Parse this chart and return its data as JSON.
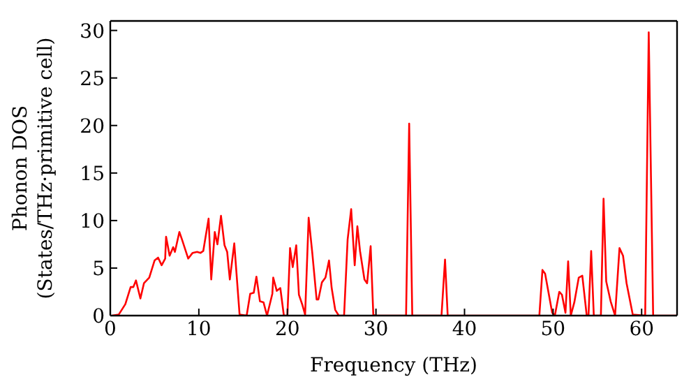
{
  "chart_data": {
    "type": "line",
    "xlabel": "Frequency (THz)",
    "ylabel": "Phonon DOS\n(States/THz·primitive cell)",
    "xlim": [
      0,
      64
    ],
    "ylim": [
      0,
      31
    ],
    "xticks": [
      0,
      10,
      20,
      30,
      40,
      50,
      60
    ],
    "yticks": [
      0,
      5,
      10,
      15,
      20,
      25,
      30
    ],
    "marker": "none",
    "line_style": "solid",
    "x": [
      0.2,
      0.95,
      1.7,
      2.3,
      2.6,
      2.9,
      3.4,
      3.8,
      4.4,
      5.0,
      5.4,
      5.8,
      6.2,
      6.3,
      6.7,
      7.1,
      7.3,
      7.8,
      8.1,
      8.8,
      9.3,
      9.8,
      10.2,
      10.5,
      11.1,
      11.4,
      11.8,
      12.1,
      12.5,
      12.9,
      13.2,
      13.5,
      14.0,
      14.6,
      15.4,
      15.8,
      16.2,
      16.5,
      16.9,
      17.3,
      17.7,
      18.3,
      18.4,
      18.8,
      19.2,
      19.6,
      20.0,
      20.3,
      20.6,
      21.0,
      21.3,
      21.7,
      22.0,
      22.4,
      22.8,
      23.3,
      23.5,
      23.9,
      24.3,
      24.7,
      25.0,
      25.4,
      25.8,
      26.4,
      26.8,
      27.2,
      27.6,
      27.9,
      28.2,
      28.7,
      29.0,
      29.4,
      29.7,
      29.9,
      33.4,
      33.75,
      34.1,
      37.4,
      37.8,
      38.1,
      48.45,
      48.8,
      49.1,
      49.9,
      50.2,
      50.7,
      51.0,
      51.4,
      51.7,
      52.0,
      52.4,
      52.9,
      53.3,
      53.8,
      54.0,
      54.3,
      54.6,
      55.4,
      55.7,
      56.0,
      56.5,
      57.0,
      57.5,
      57.9,
      58.3,
      59.0,
      60.4,
      60.8,
      61.3,
      64
    ],
    "series": [
      {
        "color": "#ff0000",
        "values": [
          0,
          0.1,
          1.2,
          3.0,
          3.0,
          3.7,
          1.8,
          3.4,
          4.0,
          5.8,
          6.1,
          5.3,
          6.0,
          8.3,
          6.3,
          7.2,
          6.7,
          8.8,
          8.0,
          6.0,
          6.6,
          6.7,
          6.6,
          6.8,
          10.2,
          3.8,
          8.8,
          7.5,
          10.5,
          7.4,
          6.7,
          3.8,
          7.6,
          0.1,
          0,
          2.3,
          2.4,
          4.1,
          1.5,
          1.4,
          0,
          2.3,
          4.0,
          2.6,
          2.9,
          0,
          0,
          7.1,
          5.1,
          7.4,
          2.2,
          1.1,
          0.1,
          10.3,
          6.7,
          1.7,
          1.7,
          3.5,
          4.0,
          5.8,
          2.9,
          0.6,
          0,
          0,
          8.0,
          11.2,
          5.3,
          9.4,
          6.8,
          3.8,
          3.4,
          7.3,
          0.1,
          0,
          0,
          20.2,
          0,
          0,
          5.9,
          0,
          0,
          4.8,
          4.4,
          0.3,
          0,
          2.5,
          2.2,
          0.3,
          5.7,
          0,
          1.4,
          4.0,
          4.2,
          0,
          0,
          6.8,
          0,
          0,
          12.3,
          3.6,
          1.5,
          0,
          7.1,
          6.3,
          3.4,
          0.1,
          0,
          29.8,
          0,
          0
        ]
      }
    ]
  }
}
